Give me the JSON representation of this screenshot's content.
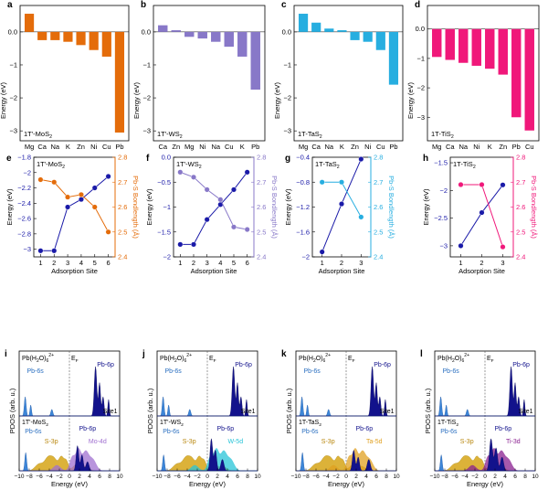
{
  "chart_data": [
    {
      "type": "bar",
      "label": "a",
      "material": "1T'-MoS",
      "sub": "2",
      "color": "#e46c0a",
      "categories": [
        "Mg",
        "Ca",
        "Na",
        "K",
        "Zn",
        "Ni",
        "Cu",
        "Pb"
      ],
      "values": [
        0.55,
        -0.25,
        -0.25,
        -0.3,
        -0.4,
        -0.55,
        -0.75,
        -3.05
      ],
      "ylabel": "Energy (eV)",
      "ylim": [
        -3.3,
        0.8
      ],
      "yticks": [
        -3,
        -2,
        -1,
        0
      ]
    },
    {
      "type": "bar",
      "label": "b",
      "material": "1T'-WS",
      "sub": "2",
      "color": "#8878c8",
      "categories": [
        "Ca",
        "Zn",
        "Mg",
        "Ni",
        "Na",
        "Cu",
        "K",
        "Pb"
      ],
      "values": [
        0.2,
        0.05,
        -0.15,
        -0.2,
        -0.3,
        -0.45,
        -0.75,
        -1.75
      ],
      "ylabel": "Energy (eV)",
      "ylim": [
        -3.3,
        0.8
      ],
      "yticks": [
        -3,
        -2,
        -1,
        0
      ]
    },
    {
      "type": "bar",
      "label": "c",
      "material": "1T-TaS",
      "sub": "2",
      "color": "#27aee0",
      "categories": [
        "Mg",
        "Ca",
        "Na",
        "K",
        "Zn",
        "Ni",
        "Cu",
        "Pb"
      ],
      "values": [
        0.55,
        0.28,
        0.1,
        0.05,
        -0.25,
        -0.3,
        -0.55,
        -1.6
      ],
      "ylabel": "Energy (eV)",
      "ylim": [
        -3.3,
        0.8
      ],
      "yticks": [
        -3,
        -2,
        -1,
        0
      ]
    },
    {
      "type": "bar",
      "label": "d",
      "material": "1T-TiS",
      "sub": "2",
      "color": "#f0187a",
      "categories": [
        "Mg",
        "Ca",
        "Na",
        "Ni",
        "K",
        "Zn",
        "Pb",
        "Cu"
      ],
      "values": [
        -0.95,
        -1.05,
        -1.15,
        -1.25,
        -1.35,
        -1.55,
        -3.0,
        -3.45
      ],
      "ylabel": "Energy (eV)",
      "ylim": [
        -3.8,
        0.8
      ],
      "yticks": [
        -3,
        -2,
        -1,
        0
      ]
    },
    {
      "type": "line",
      "label": "e",
      "material": "1T'-MoS",
      "sub": "2",
      "color": "#e46c0a",
      "xlabel": "Adsorption Site",
      "ylabel": "Energy (eV)",
      "y2label": "Pb-S Bondlength (Å)",
      "x": [
        1,
        2,
        3,
        4,
        5,
        6
      ],
      "xticks": [
        1,
        2,
        3,
        4,
        5,
        6
      ],
      "xlim": [
        0.5,
        6.5
      ],
      "ylim": [
        -3.1,
        -1.8
      ],
      "yticks": [
        -3.0,
        -2.8,
        -2.6,
        -2.4,
        -2.2,
        -2.0,
        -1.8
      ],
      "y2lim": [
        2.4,
        2.8
      ],
      "y2ticks": [
        2.4,
        2.5,
        2.6,
        2.7,
        2.8
      ],
      "series": [
        {
          "axis": "left",
          "values": [
            -3.02,
            -3.02,
            -2.45,
            -2.35,
            -2.2,
            -2.05
          ]
        },
        {
          "axis": "right",
          "values": [
            2.71,
            2.7,
            2.64,
            2.65,
            2.6,
            2.5
          ]
        }
      ]
    },
    {
      "type": "line",
      "label": "f",
      "material": "1T'-WS",
      "sub": "2",
      "color": "#8878c8",
      "xlabel": "Adsorption Site",
      "ylabel": "Energy (eV)",
      "y2label": "Pb-S Bondlength (Å)",
      "x": [
        1,
        2,
        3,
        4,
        5,
        6
      ],
      "xticks": [
        1,
        2,
        3,
        4,
        5,
        6
      ],
      "xlim": [
        0.5,
        6.5
      ],
      "ylim": [
        -2.0,
        0.0
      ],
      "yticks": [
        -2.0,
        -1.5,
        -1.0,
        -0.5,
        0.0
      ],
      "y2lim": [
        2.4,
        2.8
      ],
      "y2ticks": [
        2.4,
        2.5,
        2.6,
        2.7,
        2.8
      ],
      "series": [
        {
          "axis": "left",
          "values": [
            -1.75,
            -1.75,
            -1.25,
            -0.95,
            -0.65,
            -0.3
          ]
        },
        {
          "axis": "right",
          "values": [
            2.74,
            2.72,
            2.67,
            2.63,
            2.52,
            2.51
          ]
        }
      ]
    },
    {
      "type": "line",
      "label": "g",
      "material": "1T-TaS",
      "sub": "2",
      "color": "#27aee0",
      "xlabel": "Adsorption Site",
      "ylabel": "Energy (eV)",
      "y2label": "Pb-S Bondlength (Å)",
      "x": [
        1,
        2,
        3
      ],
      "xticks": [
        1,
        2,
        3
      ],
      "xlim": [
        0.5,
        3.5
      ],
      "ylim": [
        -2.0,
        -0.4
      ],
      "yticks": [
        -2.0,
        -1.6,
        -1.2,
        -0.8,
        -0.4
      ],
      "y2lim": [
        2.4,
        2.8
      ],
      "y2ticks": [
        2.4,
        2.5,
        2.6,
        2.7,
        2.8
      ],
      "series": [
        {
          "axis": "left",
          "values": [
            -1.92,
            -1.15,
            -0.43
          ]
        },
        {
          "axis": "right",
          "values": [
            2.7,
            2.7,
            2.56
          ]
        }
      ]
    },
    {
      "type": "line",
      "label": "h",
      "material": "1T-TiS",
      "sub": "2",
      "color": "#f0187a",
      "xlabel": "Adsorption Site",
      "ylabel": "Energy (eV)",
      "y2label": "Pb-S Bondlength (Å)",
      "x": [
        1,
        2,
        3
      ],
      "xticks": [
        1,
        2,
        3
      ],
      "xlim": [
        0.5,
        3.5
      ],
      "ylim": [
        -3.2,
        -1.4
      ],
      "yticks": [
        -3.0,
        -2.5,
        -2.0,
        -1.5
      ],
      "y2lim": [
        2.4,
        2.8
      ],
      "y2ticks": [
        2.4,
        2.5,
        2.6,
        2.7,
        2.8
      ],
      "series": [
        {
          "axis": "left",
          "values": [
            -3.0,
            -2.4,
            -1.9
          ]
        },
        {
          "axis": "right",
          "values": [
            2.69,
            2.69,
            2.44
          ]
        }
      ]
    },
    {
      "type": "area",
      "label": "i",
      "material": "1T'-MoS",
      "sub": "2",
      "metal_color": "#a070d0",
      "metal_label": "Mo-4d",
      "xlabel": "Energy (eV)",
      "ylabel": "PDOS (arb. u.)",
      "xlim": [
        -10,
        10
      ],
      "xticks": [
        -10,
        -8,
        -6,
        -4,
        -2,
        0,
        2,
        4,
        6,
        8,
        10
      ],
      "fermi": 0,
      "top_label": "Pb(H",
      "top_label_sub": "2",
      "top_label_mid": "O)",
      "top_label_sub2": "6",
      "top_label_sup": "2+",
      "ef_label": "E",
      "ef_sub": "F",
      "site_label": "Site1",
      "pb6s_top": "Pb-6s",
      "pb6p_top": "Pb-6p",
      "pb6s_bottom": "Pb-6s",
      "s3p": "S-3p",
      "pb6p_bottom": "Pb-6p",
      "top_peaks": [
        [
          -8.8,
          0.35,
          0.18
        ],
        [
          -7.7,
          0.2,
          0.15
        ],
        [
          -3.5,
          0.12,
          0.2
        ],
        [
          5.2,
          0.9,
          0.25
        ],
        [
          6.0,
          0.6,
          0.2
        ],
        [
          6.7,
          0.35,
          0.2
        ],
        [
          7.8,
          0.3,
          0.15
        ]
      ],
      "bottom_peaks": [
        [
          -8.7,
          0.4,
          0.18
        ],
        [
          1.6,
          0.55,
          0.25
        ],
        [
          2.5,
          0.35,
          0.25
        ],
        [
          3.6,
          0.2,
          0.3
        ]
      ]
    },
    {
      "type": "area",
      "label": "j",
      "material": "1T'-WS",
      "sub": "2",
      "metal_color": "#27c4d8",
      "metal_label": "W-5d",
      "xlabel": "Energy (eV)",
      "ylabel": "PDOS (arb. u.)",
      "xlim": [
        -10,
        10
      ],
      "xticks": [
        -10,
        -8,
        -6,
        -4,
        -2,
        0,
        2,
        4,
        6,
        8,
        10
      ],
      "fermi": 0,
      "top_label": "Pb(H",
      "top_label_sub": "2",
      "top_label_mid": "O)",
      "top_label_sub2": "6",
      "top_label_sup": "2+",
      "ef_label": "E",
      "ef_sub": "F",
      "site_label": "Site1",
      "pb6s_top": "Pb-6s",
      "pb6p_top": "Pb-6p",
      "pb6s_bottom": "Pb-6s",
      "s3p": "S-3p",
      "pb6p_bottom": "Pb-6p",
      "top_peaks": [
        [
          -8.8,
          0.35,
          0.18
        ],
        [
          -7.7,
          0.2,
          0.15
        ],
        [
          -3.5,
          0.12,
          0.2
        ],
        [
          5.2,
          0.9,
          0.25
        ],
        [
          6.0,
          0.6,
          0.2
        ],
        [
          6.7,
          0.35,
          0.2
        ],
        [
          7.8,
          0.3,
          0.15
        ]
      ],
      "bottom_peaks": [
        [
          -8.7,
          0.35,
          0.18
        ],
        [
          0.8,
          0.7,
          0.25
        ],
        [
          1.6,
          0.45,
          0.25
        ],
        [
          3.0,
          0.25,
          0.3
        ]
      ]
    },
    {
      "type": "area",
      "label": "k",
      "material": "1T-TaS",
      "sub": "2",
      "metal_color": "#e0a020",
      "metal_label": "Ta-5d",
      "xlabel": "Energy (eV)",
      "ylabel": "PDOS (arb. u.)",
      "xlim": [
        -10,
        10
      ],
      "xticks": [
        -10,
        -8,
        -6,
        -4,
        -2,
        0,
        2,
        4,
        6,
        8,
        10
      ],
      "fermi": 0,
      "top_label": "Pb(H",
      "top_label_sub": "2",
      "top_label_mid": "O)",
      "top_label_sub2": "6",
      "top_label_sup": "2+",
      "ef_label": "E",
      "ef_sub": "F",
      "site_label": "Site1",
      "pb6s_top": "Pb-6s",
      "pb6p_top": "Pb-6p",
      "pb6s_bottom": "Pb-6s",
      "s3p": "S-3p",
      "pb6p_bottom": "Pb-6p",
      "top_peaks": [
        [
          -8.8,
          0.35,
          0.18
        ],
        [
          -7.7,
          0.2,
          0.15
        ],
        [
          -3.5,
          0.12,
          0.2
        ],
        [
          5.2,
          0.9,
          0.25
        ],
        [
          6.0,
          0.6,
          0.2
        ],
        [
          6.7,
          0.35,
          0.2
        ],
        [
          7.8,
          0.3,
          0.15
        ]
      ],
      "bottom_peaks": [
        [
          -8.7,
          0.4,
          0.18
        ],
        [
          1.5,
          0.45,
          0.25
        ],
        [
          2.4,
          0.3,
          0.25
        ],
        [
          4.5,
          0.25,
          0.3
        ]
      ]
    },
    {
      "type": "area",
      "label": "l",
      "material": "1T-TiS",
      "sub": "2",
      "metal_color": "#8a2090",
      "metal_label": "Ti-3d",
      "xlabel": "Energy (eV)",
      "ylabel": "PDOS (arb. u.)",
      "xlim": [
        -10,
        10
      ],
      "xticks": [
        -10,
        -8,
        -6,
        -4,
        -2,
        0,
        2,
        4,
        6,
        8,
        10
      ],
      "fermi": 0,
      "top_label": "Pb(H",
      "top_label_sub": "2",
      "top_label_mid": "O)",
      "top_label_sub2": "6",
      "top_label_sup": "2+",
      "ef_label": "E",
      "ef_sub": "F",
      "site_label": "Site1",
      "pb6s_top": "Pb-6s",
      "pb6p_top": "Pb-6p",
      "pb6s_bottom": "Pb-6s",
      "s3p": "S-3p",
      "pb6p_bottom": "Pb-6p",
      "top_peaks": [
        [
          -8.8,
          0.35,
          0.18
        ],
        [
          -7.7,
          0.2,
          0.15
        ],
        [
          -3.5,
          0.12,
          0.2
        ],
        [
          5.2,
          0.9,
          0.25
        ],
        [
          6.0,
          0.6,
          0.2
        ],
        [
          6.7,
          0.35,
          0.2
        ],
        [
          7.8,
          0.3,
          0.15
        ]
      ],
      "bottom_peaks": [
        [
          -8.7,
          0.35,
          0.18
        ],
        [
          1.2,
          0.7,
          0.3
        ],
        [
          2.2,
          0.5,
          0.3
        ],
        [
          3.4,
          0.3,
          0.3
        ]
      ]
    }
  ]
}
